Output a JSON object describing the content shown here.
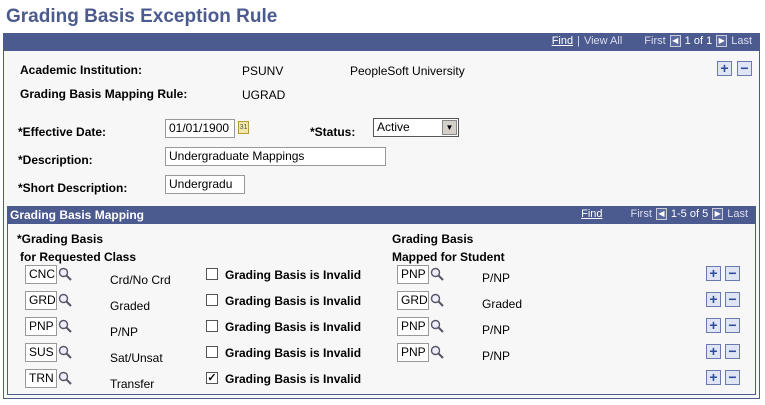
{
  "page": {
    "title": "Grading Basis Exception Rule"
  },
  "outer_nav": {
    "find": "Find",
    "view_all": "View All",
    "first": "First",
    "count": "1 of 1",
    "last": "Last"
  },
  "header": {
    "institution_label": "Academic Institution:",
    "institution_code": "PSUNV",
    "institution_name": "PeopleSoft University",
    "rule_label": "Grading Basis Mapping Rule:",
    "rule_value": "UGRAD",
    "effdt_label": "*Effective Date:",
    "effdt_value": "01/01/1900",
    "status_label": "*Status:",
    "status_value": "Active",
    "descr_label": "*Description:",
    "descr_value": "Undergraduate Mappings",
    "short_label": "*Short Description:",
    "short_value": "Undergradu"
  },
  "mapping": {
    "title": "Grading Basis Mapping",
    "nav": {
      "find": "Find",
      "first": "First",
      "count": "1-5 of 5",
      "last": "Last"
    },
    "col1": [
      "*Grading Basis",
      "for Requested Class"
    ],
    "col2": [
      "Grading Basis",
      "Mapped for Student"
    ],
    "invalid_label": "Grading Basis is Invalid",
    "rows": [
      {
        "code": "CNC",
        "descr": "Crd/No Crd",
        "invalid": false,
        "mapped": "PNP",
        "mapped_descr": "P/NP"
      },
      {
        "code": "GRD",
        "descr": "Graded",
        "invalid": false,
        "mapped": "GRD",
        "mapped_descr": "Graded"
      },
      {
        "code": "PNP",
        "descr": "P/NP",
        "invalid": false,
        "mapped": "PNP",
        "mapped_descr": "P/NP"
      },
      {
        "code": "SUS",
        "descr": "Sat/Unsat",
        "invalid": false,
        "mapped": "PNP",
        "mapped_descr": "P/NP"
      },
      {
        "code": "TRN",
        "descr": "Transfer",
        "invalid": true,
        "mapped": "",
        "mapped_descr": ""
      }
    ]
  }
}
